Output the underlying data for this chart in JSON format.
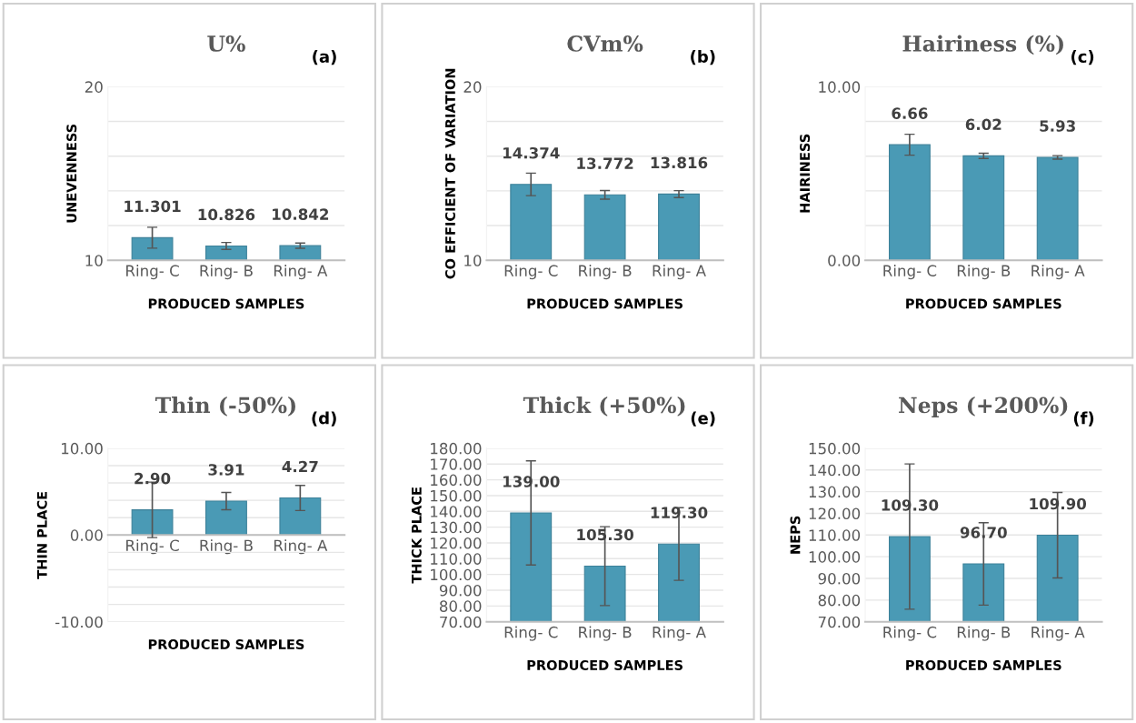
{
  "chart_data": [
    {
      "type": "bar",
      "title": "U%",
      "annotations": [
        "(a)"
      ],
      "xlabel": "PRODUCED SAMPLES",
      "ylabel": "UNEVENNESS",
      "categories": [
        "Ring- C",
        "Ring- B",
        "Ring- A"
      ],
      "values": [
        11.301,
        10.826,
        10.842
      ],
      "value_labels": [
        "11.301",
        "10.826",
        "10.842"
      ],
      "errors": [
        0.6,
        0.2,
        0.15
      ],
      "color": "#4a9ab5",
      "ylim": [
        10,
        20
      ],
      "yticks": [
        10,
        {
          "value": 12,
          "label": null
        },
        {
          "value": 14,
          "label": null
        },
        {
          "value": 16,
          "label": null
        },
        {
          "value": 18,
          "label": null
        },
        20
      ],
      "grid": "y"
    },
    {
      "type": "bar",
      "title": "CVm%",
      "annotations": [
        "(b)"
      ],
      "xlabel": "PRODUCED SAMPLES",
      "ylabel": "CO EFFICIENT OF VARIATION",
      "categories": [
        "Ring- C",
        "Ring- B",
        "Ring- A"
      ],
      "values": [
        14.374,
        13.772,
        13.816
      ],
      "value_labels": [
        "14.374",
        "13.772",
        "13.816"
      ],
      "errors": [
        0.65,
        0.25,
        0.2
      ],
      "color": "#4a9ab5",
      "ylim": [
        10,
        20
      ],
      "yticks": [
        10,
        {
          "value": 12,
          "label": null
        },
        {
          "value": 14,
          "label": null
        },
        {
          "value": 16,
          "label": null
        },
        {
          "value": 18,
          "label": null
        },
        20
      ],
      "grid": "y"
    },
    {
      "type": "bar",
      "title": "Hairiness (%)",
      "annotations": [
        "(c)"
      ],
      "xlabel": "PRODUCED SAMPLES",
      "ylabel": "HAIRINESS",
      "categories": [
        "Ring- C",
        "Ring- B",
        "Ring- A"
      ],
      "values": [
        6.66,
        6.02,
        5.93
      ],
      "value_labels": [
        "6.66",
        "6.02",
        "5.93"
      ],
      "errors": [
        0.6,
        0.15,
        0.1
      ],
      "color": "#4a9ab5",
      "ylim": [
        0,
        10
      ],
      "yticks": [
        {
          "value": 0,
          "label": "0.00"
        },
        {
          "value": 2,
          "label": null
        },
        {
          "value": 4,
          "label": null
        },
        {
          "value": 6,
          "label": null
        },
        {
          "value": 8,
          "label": null
        },
        {
          "value": 10,
          "label": "10.00"
        }
      ],
      "grid": "y"
    },
    {
      "type": "bar",
      "title": "Thin (-50%)",
      "annotations": [
        "(d)"
      ],
      "xlabel": "PRODUCED SAMPLES",
      "ylabel": "THIN PLACE",
      "categories": [
        "Ring- C",
        "Ring- B",
        "Ring- A"
      ],
      "values": [
        2.9,
        3.91,
        4.27
      ],
      "value_labels": [
        "2.90",
        "3.91",
        "4.27"
      ],
      "errors": [
        3.2,
        1.0,
        1.45
      ],
      "color": "#4a9ab5",
      "ylim": [
        -10,
        10
      ],
      "yticks": [
        {
          "value": -10,
          "label": "-10.00"
        },
        {
          "value": -8,
          "label": null
        },
        {
          "value": -6,
          "label": null
        },
        {
          "value": -4,
          "label": null
        },
        {
          "value": -2,
          "label": null
        },
        {
          "value": 0,
          "label": "0.00"
        },
        {
          "value": 2,
          "label": null
        },
        {
          "value": 4,
          "label": null
        },
        {
          "value": 6,
          "label": null
        },
        {
          "value": 8,
          "label": null
        },
        {
          "value": 10,
          "label": "10.00"
        }
      ],
      "grid": "y"
    },
    {
      "type": "bar",
      "title": "Thick (+50%)",
      "annotations": [
        "(e)"
      ],
      "xlabel": "PRODUCED SAMPLES",
      "ylabel": "THICK PLACE",
      "categories": [
        "Ring- C",
        "Ring- B",
        "Ring- A"
      ],
      "values": [
        139.0,
        105.3,
        119.3
      ],
      "value_labels": [
        "139.00",
        "105.30",
        "119.30"
      ],
      "errors": [
        33,
        25,
        23
      ],
      "color": "#4a9ab5",
      "ylim": [
        70,
        180
      ],
      "yticks": [
        {
          "value": 70,
          "label": "70.00"
        },
        {
          "value": 80,
          "label": "80.00"
        },
        {
          "value": 90,
          "label": "90.00"
        },
        {
          "value": 100,
          "label": "100.00"
        },
        {
          "value": 110,
          "label": "110.00"
        },
        {
          "value": 120,
          "label": "120.00"
        },
        {
          "value": 130,
          "label": "130.00"
        },
        {
          "value": 140,
          "label": "140.00"
        },
        {
          "value": 150,
          "label": "150.00"
        },
        {
          "value": 160,
          "label": "160.00"
        },
        {
          "value": 170,
          "label": "170.00"
        },
        {
          "value": 180,
          "label": "180.00"
        }
      ],
      "grid": "y"
    },
    {
      "type": "bar",
      "title": "Neps (+200%)",
      "annotations": [
        "(f)"
      ],
      "xlabel": "PRODUCED SAMPLES",
      "ylabel": "NEPS",
      "categories": [
        "Ring- C",
        "Ring- B",
        "Ring- A"
      ],
      "values": [
        109.3,
        96.7,
        109.9
      ],
      "value_labels": [
        "109.30",
        "96.70",
        "109.90"
      ],
      "errors": [
        33.5,
        19,
        19.7
      ],
      "color": "#4a9ab5",
      "ylim": [
        70,
        150
      ],
      "yticks": [
        {
          "value": 70,
          "label": "70.00"
        },
        {
          "value": 80,
          "label": "80.00"
        },
        {
          "value": 90,
          "label": "90.00"
        },
        {
          "value": 100,
          "label": "100.00"
        },
        {
          "value": 110,
          "label": "110.00"
        },
        {
          "value": 120,
          "label": "120.00"
        },
        {
          "value": 130,
          "label": "130.00"
        },
        {
          "value": 140,
          "label": "140.00"
        },
        {
          "value": 150,
          "label": "150.00"
        }
      ],
      "grid": "y"
    }
  ]
}
